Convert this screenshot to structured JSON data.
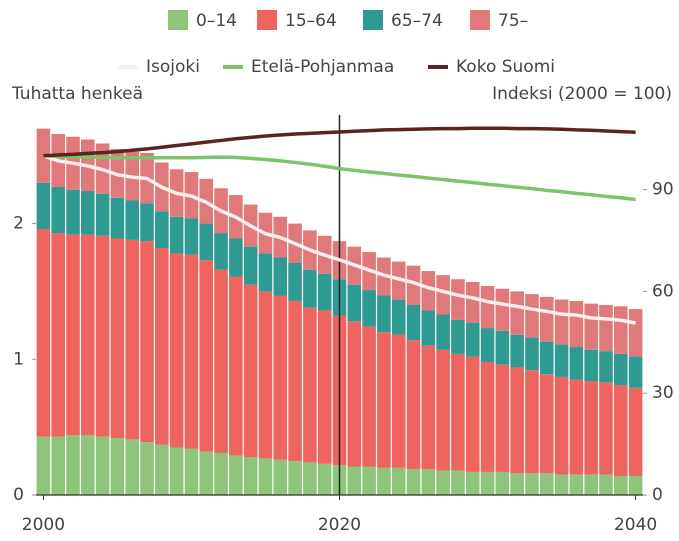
{
  "chart_data": {
    "type": "stacked_bar_line",
    "legend_bars_title": null,
    "x": [
      2000,
      2001,
      2002,
      2003,
      2004,
      2005,
      2006,
      2007,
      2008,
      2009,
      2010,
      2011,
      2012,
      2013,
      2014,
      2015,
      2016,
      2017,
      2018,
      2019,
      2020,
      2021,
      2022,
      2023,
      2024,
      2025,
      2026,
      2027,
      2028,
      2029,
      2030,
      2031,
      2032,
      2033,
      2034,
      2035,
      2036,
      2037,
      2038,
      2039,
      2040
    ],
    "xlim": [
      1999.5,
      2040.5
    ],
    "xticks": [
      2000,
      2020,
      2040
    ],
    "ylabel": "Tuhatta henkeä",
    "ylim": [
      0,
      2.8
    ],
    "yticks": [
      0,
      1,
      2
    ],
    "y2label": "Indeksi (2000 = 100)",
    "y2lim": [
      0,
      112
    ],
    "y2ticks": [
      0,
      30,
      60,
      90
    ],
    "vline": 2020,
    "series": [
      {
        "name": "0–14",
        "color": "#8fc57a",
        "values": [
          0.43,
          0.43,
          0.44,
          0.44,
          0.43,
          0.42,
          0.41,
          0.39,
          0.37,
          0.35,
          0.34,
          0.32,
          0.31,
          0.29,
          0.28,
          0.27,
          0.26,
          0.25,
          0.24,
          0.23,
          0.22,
          0.21,
          0.21,
          0.2,
          0.2,
          0.19,
          0.19,
          0.18,
          0.18,
          0.17,
          0.17,
          0.17,
          0.16,
          0.16,
          0.16,
          0.15,
          0.15,
          0.15,
          0.15,
          0.14,
          0.14
        ]
      },
      {
        "name": "15–64",
        "color": "#ee6560",
        "values": [
          1.53,
          1.5,
          1.48,
          1.48,
          1.48,
          1.47,
          1.47,
          1.48,
          1.45,
          1.43,
          1.43,
          1.41,
          1.35,
          1.32,
          1.27,
          1.23,
          1.21,
          1.18,
          1.14,
          1.13,
          1.1,
          1.07,
          1.03,
          1.0,
          0.98,
          0.95,
          0.91,
          0.89,
          0.86,
          0.85,
          0.81,
          0.79,
          0.78,
          0.76,
          0.73,
          0.72,
          0.7,
          0.69,
          0.68,
          0.67,
          0.65
        ]
      },
      {
        "name": "65–74",
        "color": "#2e9a92",
        "values": [
          0.34,
          0.34,
          0.33,
          0.32,
          0.31,
          0.3,
          0.29,
          0.28,
          0.27,
          0.27,
          0.27,
          0.27,
          0.27,
          0.28,
          0.28,
          0.28,
          0.28,
          0.28,
          0.28,
          0.27,
          0.27,
          0.27,
          0.27,
          0.27,
          0.26,
          0.26,
          0.26,
          0.26,
          0.25,
          0.25,
          0.25,
          0.25,
          0.24,
          0.24,
          0.24,
          0.24,
          0.24,
          0.23,
          0.23,
          0.23,
          0.23
        ]
      },
      {
        "name": "75–",
        "color": "#e07a7a",
        "values": [
          0.4,
          0.39,
          0.39,
          0.38,
          0.37,
          0.36,
          0.36,
          0.37,
          0.36,
          0.35,
          0.34,
          0.33,
          0.33,
          0.32,
          0.31,
          0.3,
          0.3,
          0.29,
          0.29,
          0.28,
          0.28,
          0.28,
          0.28,
          0.28,
          0.28,
          0.29,
          0.29,
          0.29,
          0.3,
          0.3,
          0.31,
          0.31,
          0.32,
          0.32,
          0.33,
          0.33,
          0.34,
          0.34,
          0.34,
          0.35,
          0.35
        ]
      },
      {
        "name": "Isojoki",
        "color": "#f6efed",
        "axis": "y2",
        "kind": "line",
        "values": [
          100,
          98.5,
          97.8,
          97.0,
          95.9,
          94.4,
          93.7,
          93.3,
          90.7,
          88.9,
          88.1,
          86.3,
          83.7,
          81.9,
          79.3,
          77.0,
          75.9,
          74.1,
          72.2,
          70.7,
          69.3,
          67.8,
          66.3,
          64.8,
          63.7,
          62.6,
          61.1,
          60.0,
          58.9,
          58.1,
          57.0,
          56.3,
          55.6,
          54.8,
          54.1,
          53.3,
          53.0,
          52.2,
          51.9,
          51.5,
          50.7
        ]
      },
      {
        "name": "Etelä-Pohjanmaa",
        "color": "#7cc36a",
        "axis": "y2",
        "kind": "line",
        "values": [
          100,
          99.8,
          99.7,
          99.6,
          99.5,
          99.4,
          99.4,
          99.4,
          99.4,
          99.4,
          99.4,
          99.5,
          99.6,
          99.5,
          99.2,
          98.9,
          98.5,
          98.0,
          97.5,
          96.9,
          96.2,
          95.7,
          95.2,
          94.8,
          94.3,
          93.9,
          93.4,
          93.0,
          92.5,
          92.1,
          91.6,
          91.2,
          90.7,
          90.3,
          89.8,
          89.4,
          88.9,
          88.5,
          88.0,
          87.6,
          87.1
        ]
      },
      {
        "name": "Koko Suomi",
        "color": "#5a2420",
        "axis": "y2",
        "kind": "line",
        "values": [
          100,
          100.2,
          100.4,
          100.7,
          100.9,
          101.2,
          101.6,
          102.0,
          102.5,
          103.0,
          103.5,
          104.0,
          104.5,
          105.0,
          105.4,
          105.8,
          106.1,
          106.4,
          106.6,
          106.8,
          107.0,
          107.2,
          107.4,
          107.6,
          107.7,
          107.8,
          107.9,
          108.0,
          108.0,
          108.1,
          108.1,
          108.1,
          108.0,
          108.0,
          107.9,
          107.8,
          107.6,
          107.5,
          107.3,
          107.1,
          106.9
        ]
      }
    ]
  }
}
